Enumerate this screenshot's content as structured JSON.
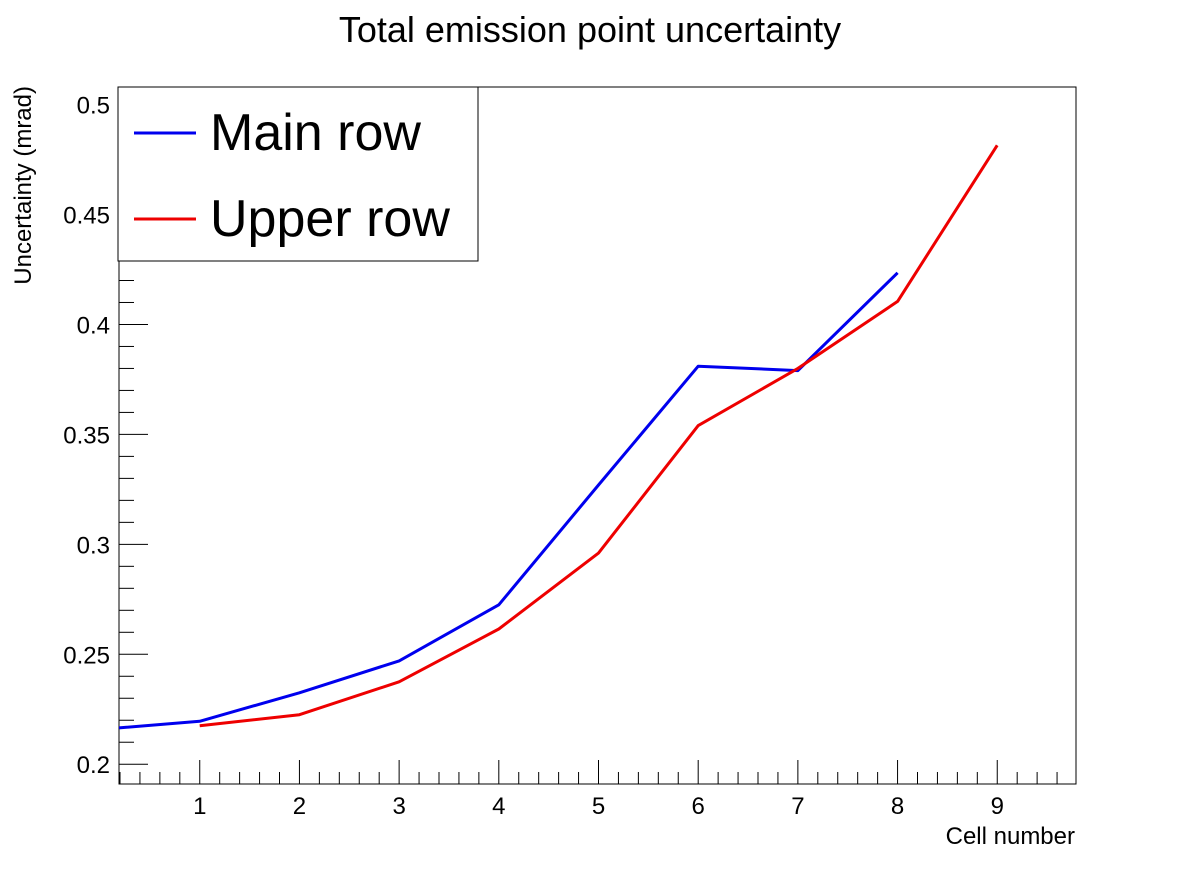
{
  "chart_data": {
    "type": "line",
    "title": "Total emission point uncertainty",
    "xlabel": "Cell number",
    "ylabel": "Uncertainty (mrad)",
    "xlim": [
      0.19,
      9.79
    ],
    "ylim": [
      0.191,
      0.508
    ],
    "xticks": [
      1,
      2,
      3,
      4,
      5,
      6,
      7,
      8,
      9
    ],
    "yticks": [
      0.2,
      0.25,
      0.3,
      0.35,
      0.4,
      0.45,
      0.5
    ],
    "ytick_labels": [
      "0.2",
      "0.25",
      "0.3",
      "0.35",
      "0.4",
      "0.45",
      "0.5"
    ],
    "legend_position": "top-left",
    "series": [
      {
        "name": "Main row",
        "color": "#0000ee",
        "x": [
          0.19,
          1,
          2,
          3,
          4,
          5,
          6,
          7,
          8
        ],
        "y": [
          0.2165,
          0.2195,
          0.2325,
          0.247,
          0.2725,
          0.327,
          0.381,
          0.379,
          0.4235
        ]
      },
      {
        "name": "Upper row",
        "color": "#ee0000",
        "x": [
          1,
          2,
          3,
          4,
          5,
          6,
          7,
          8,
          9
        ],
        "y": [
          0.2175,
          0.2225,
          0.2375,
          0.2615,
          0.296,
          0.354,
          0.38,
          0.4105,
          0.4815
        ]
      }
    ]
  }
}
